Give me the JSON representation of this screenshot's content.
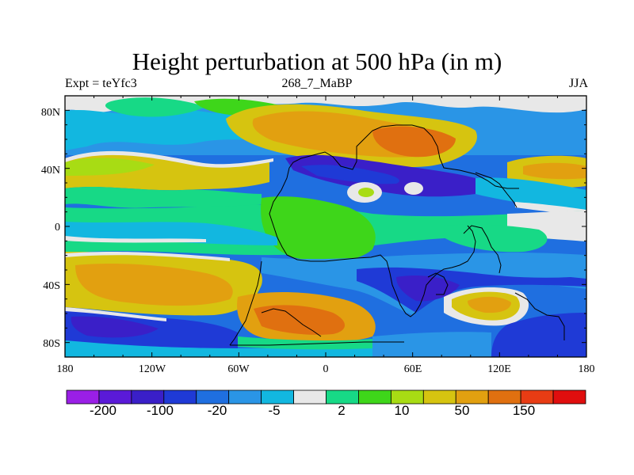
{
  "title": "Height perturbation at 500 hPa (in m)",
  "left_subtitle": "Expt = teYfc3",
  "center_subtitle": "268_7_MaBP",
  "right_subtitle": "JJA",
  "y_axis_ticks": [
    "80N",
    "40N",
    "0",
    "40S",
    "80S"
  ],
  "x_axis_ticks": [
    "180",
    "120W",
    "60W",
    "0",
    "60E",
    "120E",
    "180"
  ],
  "colorbar": {
    "colors": [
      "#9a1fe6",
      "#5a1ad8",
      "#3a1fc8",
      "#1f3ad6",
      "#1f6fe0",
      "#2a95e6",
      "#12b7e0",
      "#e8e8e8",
      "#17d986",
      "#3ed61a",
      "#a8dc14",
      "#d6c410",
      "#e2a010",
      "#e07010",
      "#e83c14",
      "#e00e0e"
    ],
    "labels": [
      "-200",
      "-100",
      "-20",
      "-5",
      "2",
      "10",
      "50",
      "150"
    ]
  }
}
